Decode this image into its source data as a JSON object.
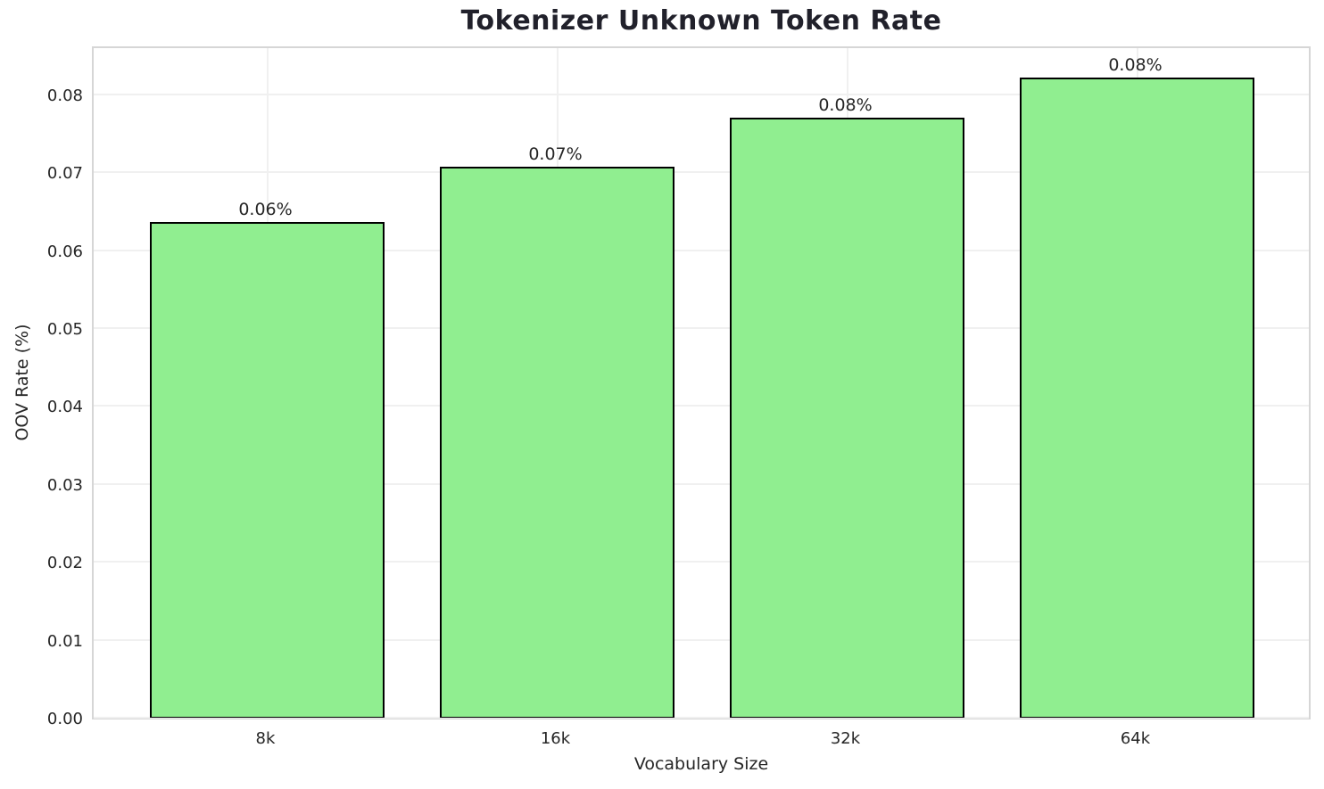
{
  "chart_data": {
    "type": "bar",
    "title": "Tokenizer Unknown Token Rate",
    "xlabel": "Vocabulary Size",
    "ylabel": "OOV Rate (%)",
    "categories": [
      "8k",
      "16k",
      "32k",
      "64k"
    ],
    "values": [
      0.0636,
      0.0707,
      0.077,
      0.0822
    ],
    "bar_labels": [
      "0.06%",
      "0.07%",
      "0.08%",
      "0.08%"
    ],
    "y_tick_labels": [
      "0.00",
      "0.01",
      "0.02",
      "0.03",
      "0.04",
      "0.05",
      "0.06",
      "0.07",
      "0.08"
    ],
    "y_tick_values": [
      0.0,
      0.01,
      0.02,
      0.03,
      0.04,
      0.05,
      0.06,
      0.07,
      0.08
    ],
    "ylim": [
      0,
      0.0864
    ],
    "grid": true,
    "legend": "none",
    "bar_color": "#90EE90",
    "bar_edge_color": "#000000",
    "grid_color": "#f0f0f0",
    "spine_color": "#d6d6d6",
    "text_color": "#262626"
  }
}
